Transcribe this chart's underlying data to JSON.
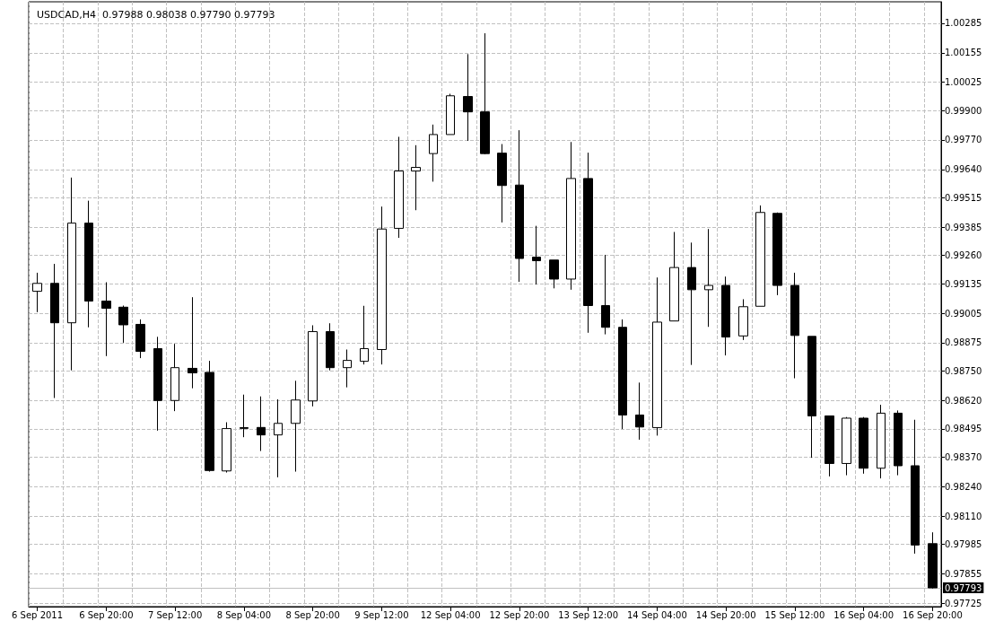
{
  "chart_data": {
    "type": "candlestick",
    "title": "USDCAD,H4  0.97988 0.98038 0.97790 0.97793",
    "categories": [
      "6 Sep 2011",
      null,
      null,
      null,
      "6 Sep 20:00",
      null,
      null,
      null,
      "7 Sep 12:00",
      null,
      null,
      null,
      "8 Sep 04:00",
      null,
      null,
      null,
      "8 Sep 20:00",
      null,
      null,
      null,
      "9 Sep 12:00",
      null,
      null,
      null,
      "12 Sep 04:00",
      null,
      null,
      null,
      "12 Sep 20:00",
      null,
      null,
      null,
      "13 Sep 12:00",
      null,
      null,
      null,
      "14 Sep 04:00",
      null,
      null,
      null,
      "14 Sep 20:00",
      null,
      null,
      null,
      "15 Sep 12:00",
      null,
      null,
      null,
      "16 Sep 04:00",
      null,
      null,
      null,
      "16 Sep 20:00"
    ],
    "series": [
      {
        "color": "#000000",
        "ohlc": [
          [
            0.99102,
            0.99184,
            0.9901,
            0.99137
          ],
          [
            0.99137,
            0.99223,
            0.98631,
            0.98963
          ],
          [
            0.98963,
            0.99604,
            0.98753,
            0.99403
          ],
          [
            0.99403,
            0.99502,
            0.98943,
            0.99059
          ],
          [
            0.99059,
            0.99142,
            0.98816,
            0.99027
          ],
          [
            0.99032,
            0.99039,
            0.98875,
            0.98954
          ],
          [
            0.98956,
            0.98978,
            0.98807,
            0.98837
          ],
          [
            0.98849,
            0.98901,
            0.98487,
            0.9862
          ],
          [
            0.9862,
            0.9887,
            0.98573,
            0.98765
          ],
          [
            0.98762,
            0.99076,
            0.98674,
            0.98742
          ],
          [
            0.98744,
            0.98795,
            0.98306,
            0.98311
          ],
          [
            0.98309,
            0.98524,
            0.98302,
            0.98496
          ],
          [
            0.985,
            0.98646,
            0.98458,
            0.98497
          ],
          [
            0.98501,
            0.98638,
            0.98397,
            0.98468
          ],
          [
            0.98468,
            0.98625,
            0.98281,
            0.98519
          ],
          [
            0.98519,
            0.98707,
            0.98306,
            0.98622
          ],
          [
            0.98618,
            0.98952,
            0.98594,
            0.98924
          ],
          [
            0.98924,
            0.98961,
            0.98753,
            0.98765
          ],
          [
            0.98765,
            0.98845,
            0.98678,
            0.98797
          ],
          [
            0.98793,
            0.99038,
            0.98779,
            0.98849
          ],
          [
            0.98845,
            0.99476,
            0.98779,
            0.99377
          ],
          [
            0.9938,
            0.99784,
            0.99338,
            0.99633
          ],
          [
            0.99633,
            0.99747,
            0.9946,
            0.99649
          ],
          [
            0.9971,
            0.99838,
            0.99586,
            0.99794
          ],
          [
            0.99794,
            0.99974,
            0.99794,
            0.99965
          ],
          [
            0.99962,
            1.00149,
            0.99766,
            0.99894
          ],
          [
            0.99894,
            1.00241,
            0.99707,
            0.9971
          ],
          [
            0.99712,
            0.99752,
            0.99406,
            0.99569
          ],
          [
            0.99571,
            0.99813,
            0.99144,
            0.99247
          ],
          [
            0.99253,
            0.99391,
            0.99132,
            0.99237
          ],
          [
            0.9924,
            0.9924,
            0.99115,
            0.99156
          ],
          [
            0.99156,
            0.99761,
            0.99109,
            0.996
          ],
          [
            0.996,
            0.99714,
            0.98919,
            0.99039
          ],
          [
            0.99039,
            0.99263,
            0.98912,
            0.98943
          ],
          [
            0.98943,
            0.98978,
            0.98494,
            0.98556
          ],
          [
            0.98556,
            0.98699,
            0.98447,
            0.98503
          ],
          [
            0.985,
            0.99163,
            0.98465,
            0.98966
          ],
          [
            0.98971,
            0.99364,
            0.98971,
            0.99207
          ],
          [
            0.99207,
            0.99317,
            0.98777,
            0.99109
          ],
          [
            0.99109,
            0.99377,
            0.98945,
            0.99128
          ],
          [
            0.99128,
            0.99167,
            0.98819,
            0.989
          ],
          [
            0.98905,
            0.99067,
            0.98887,
            0.99034
          ],
          [
            0.99036,
            0.99481,
            0.99036,
            0.9945
          ],
          [
            0.99446,
            0.9945,
            0.99085,
            0.99128
          ],
          [
            0.99128,
            0.99184,
            0.98718,
            0.98907
          ],
          [
            0.98903,
            0.98903,
            0.98367,
            0.98552
          ],
          [
            0.98552,
            0.98552,
            0.98285,
            0.98342
          ],
          [
            0.98342,
            0.98547,
            0.9829,
            0.98542
          ],
          [
            0.98542,
            0.98547,
            0.98297,
            0.98321
          ],
          [
            0.98321,
            0.98601,
            0.98276,
            0.98564
          ],
          [
            0.98564,
            0.98576,
            0.9829,
            0.98332
          ],
          [
            0.98332,
            0.98535,
            0.97944,
            0.97982
          ],
          [
            0.97988,
            0.98038,
            0.9779,
            0.97793
          ]
        ]
      }
    ],
    "ylim": [
      0.9771,
      1.0038
    ],
    "yticks": [
      1.00285,
      1.00155,
      1.00025,
      {
        "value": 0.999,
        "label": "0.99900"
      },
      {
        "value": 0.9977,
        "label": "0.99770"
      },
      {
        "value": 0.9964,
        "label": "0.99640"
      },
      0.99515,
      0.99385,
      {
        "value": 0.9926,
        "label": "0.99260"
      },
      0.99135,
      0.99005,
      0.98875,
      {
        "value": 0.9875,
        "label": "0.98750"
      },
      {
        "value": 0.9862,
        "label": "0.98620"
      },
      0.98495,
      {
        "value": 0.9837,
        "label": "0.98370"
      },
      {
        "value": 0.9824,
        "label": "0.98240"
      },
      {
        "value": 0.9811,
        "label": "0.98110"
      },
      0.97985,
      0.97855,
      0.97725
    ],
    "ref_lines": [
      {
        "axis": "y",
        "value": 0.97793,
        "label": "0.97793",
        "color": "#c0c0c0"
      }
    ],
    "grid": true
  }
}
